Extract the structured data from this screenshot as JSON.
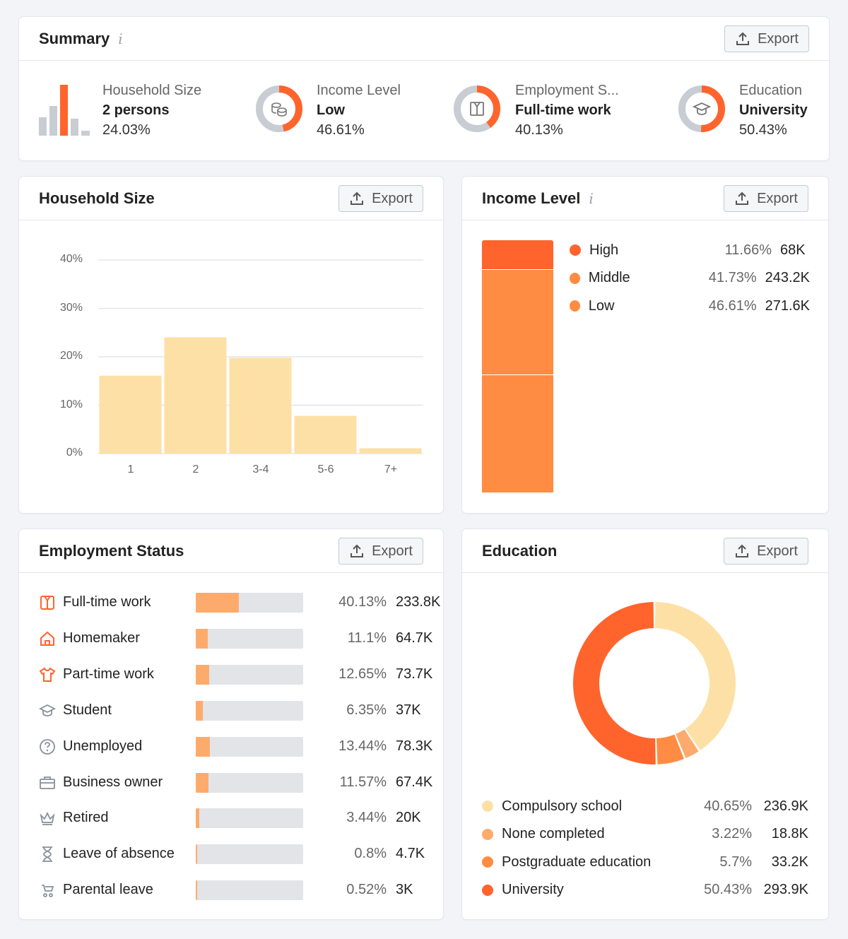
{
  "export_label": "Export",
  "info_symbol": "i",
  "summary": {
    "title": "Summary",
    "items": [
      {
        "label": "Household Size",
        "value": "2 persons",
        "pct": "24.03%",
        "icon": "bar-chart-icon"
      },
      {
        "label": "Income Level",
        "value": "Low",
        "pct": "46.61%",
        "icon": "coins-icon",
        "share": 0.4661
      },
      {
        "label": "Employment S...",
        "value": "Full-time work",
        "pct": "40.13%",
        "icon": "shirt-icon",
        "share": 0.4013
      },
      {
        "label": "Education",
        "value": "University",
        "pct": "50.43%",
        "icon": "graduation-cap-icon",
        "share": 0.5043
      }
    ]
  },
  "household": {
    "title": "Household Size"
  },
  "chart_data": {
    "type": "bar",
    "categories": [
      "1",
      "2",
      "3-4",
      "5-6",
      "7+"
    ],
    "values": [
      16.1,
      24.03,
      19.8,
      7.8,
      1.1
    ],
    "ylim": [
      0,
      40
    ],
    "yticks": [
      "40%",
      "30%",
      "20%",
      "10%",
      "0%"
    ],
    "ytick_values": [
      40,
      30,
      20,
      10,
      0
    ],
    "color": "#fde0a5",
    "grid": true
  },
  "income": {
    "title": "Income Level",
    "rows": [
      {
        "label": "High",
        "pct": "11.66%",
        "count": "68K",
        "share": 0.1166,
        "color": "#ff642d"
      },
      {
        "label": "Middle",
        "pct": "41.73%",
        "count": "243.2K",
        "share": 0.4173,
        "color": "#ff8c42"
      },
      {
        "label": "Low",
        "pct": "46.61%",
        "count": "271.6K",
        "share": 0.4661,
        "color": "#ff8c42"
      }
    ]
  },
  "employment": {
    "title": "Employment Status",
    "rows": [
      {
        "label": "Full-time work",
        "pct": "40.13%",
        "count": "233.8K",
        "share": 0.4013,
        "icon": "shirt-icon"
      },
      {
        "label": "Homemaker",
        "pct": "11.1%",
        "count": "64.7K",
        "share": 0.111,
        "icon": "house-icon"
      },
      {
        "label": "Part-time work",
        "pct": "12.65%",
        "count": "73.7K",
        "share": 0.1265,
        "icon": "tshirt-icon"
      },
      {
        "label": "Student",
        "pct": "6.35%",
        "count": "37K",
        "share": 0.0635,
        "icon": "graduation-cap-icon"
      },
      {
        "label": "Unemployed",
        "pct": "13.44%",
        "count": "78.3K",
        "share": 0.1344,
        "icon": "question-circle-icon"
      },
      {
        "label": "Business owner",
        "pct": "11.57%",
        "count": "67.4K",
        "share": 0.1157,
        "icon": "briefcase-icon"
      },
      {
        "label": "Retired",
        "pct": "3.44%",
        "count": "20K",
        "share": 0.0344,
        "icon": "crown-icon"
      },
      {
        "label": "Leave of absence",
        "pct": "0.8%",
        "count": "4.7K",
        "share": 0.008,
        "icon": "hourglass-icon"
      },
      {
        "label": "Parental leave",
        "pct": "0.52%",
        "count": "3K",
        "share": 0.0052,
        "icon": "stroller-icon"
      }
    ]
  },
  "education": {
    "title": "Education",
    "rows": [
      {
        "label": "Compulsory school",
        "pct": "40.65%",
        "count": "236.9K",
        "share": 0.4065,
        "color": "#fde0a5"
      },
      {
        "label": "None completed",
        "pct": "3.22%",
        "count": "18.8K",
        "share": 0.0322,
        "color": "#fdab6d"
      },
      {
        "label": "Postgraduate education",
        "pct": "5.7%",
        "count": "33.2K",
        "share": 0.057,
        "color": "#ff8c42"
      },
      {
        "label": "University",
        "pct": "50.43%",
        "count": "293.9K",
        "share": 0.5043,
        "color": "#ff642d"
      }
    ]
  },
  "colors": {
    "accent": "#ff642d",
    "orange": "#ff8c42",
    "light_orange": "#fdab6d",
    "cream": "#fde0a5",
    "grey": "#c8ccd3"
  }
}
